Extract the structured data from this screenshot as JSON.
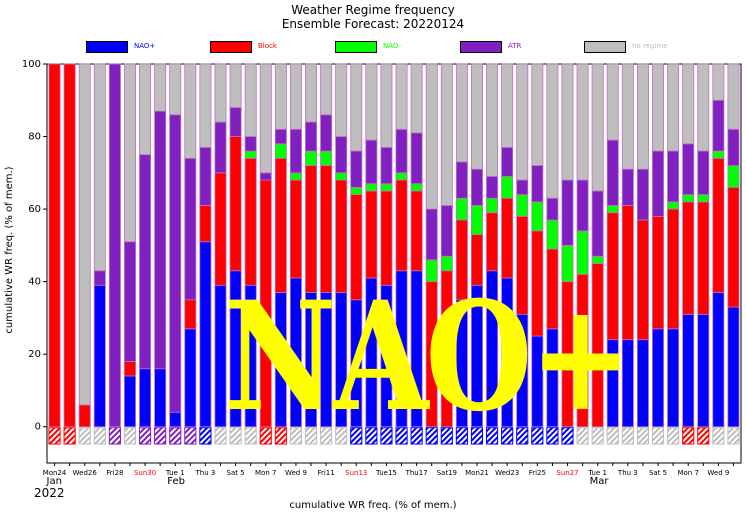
{
  "header": {
    "title": "Weather Regime frequency",
    "subtitle": "Ensemble Forecast: 20220124"
  },
  "legend": [
    {
      "label": "NAO+",
      "color": "#0000ff",
      "text_color": "#0000ff"
    },
    {
      "label": "Block",
      "color": "#ff0000",
      "text_color": "#ff0000"
    },
    {
      "label": "NAO-",
      "color": "#00ff00",
      "text_color": "#00ff00"
    },
    {
      "label": "ATR",
      "color": "#8020c0",
      "text_color": "#8020c0"
    },
    {
      "label": "no regime",
      "color": "#bebebe",
      "text_color": "#bebebe"
    }
  ],
  "overlay_text": "NAO+",
  "chart_data": {
    "type": "bar",
    "stacked": true,
    "ylabel": "cumulative WR freq. (% of mem.)",
    "xlabel": "cumulative WR freq. (% of mem.)",
    "ylim": [
      -10,
      100
    ],
    "yticks": [
      0,
      20,
      40,
      60,
      80,
      100
    ],
    "year_label": "2022",
    "month_labels": [
      {
        "label": "Jan",
        "at_index": 0
      },
      {
        "label": "Feb",
        "at_index": 8
      },
      {
        "label": "Mar",
        "at_index": 36
      }
    ],
    "tick_labels": [
      {
        "label": "Mon24",
        "at_index": 0,
        "color": "#000000"
      },
      {
        "label": "Wed26",
        "at_index": 2,
        "color": "#000000"
      },
      {
        "label": "Fri28",
        "at_index": 4,
        "color": "#000000"
      },
      {
        "label": "Sun30",
        "at_index": 6,
        "color": "#ff0000"
      },
      {
        "label": "Tue 1",
        "at_index": 8,
        "color": "#000000"
      },
      {
        "label": "Thu 3",
        "at_index": 10,
        "color": "#000000"
      },
      {
        "label": "Sat 5",
        "at_index": 12,
        "color": "#000000"
      },
      {
        "label": "Mon 7",
        "at_index": 14,
        "color": "#000000"
      },
      {
        "label": "Wed 9",
        "at_index": 16,
        "color": "#000000"
      },
      {
        "label": "Fri11",
        "at_index": 18,
        "color": "#000000"
      },
      {
        "label": "Sun13",
        "at_index": 20,
        "color": "#ff0000"
      },
      {
        "label": "Tue15",
        "at_index": 22,
        "color": "#000000"
      },
      {
        "label": "Thu17",
        "at_index": 24,
        "color": "#000000"
      },
      {
        "label": "Sat19",
        "at_index": 26,
        "color": "#000000"
      },
      {
        "label": "Mon21",
        "at_index": 28,
        "color": "#000000"
      },
      {
        "label": "Wed23",
        "at_index": 30,
        "color": "#000000"
      },
      {
        "label": "Fri25",
        "at_index": 32,
        "color": "#000000"
      },
      {
        "label": "Sun27",
        "at_index": 34,
        "color": "#ff0000"
      },
      {
        "label": "Tue 1",
        "at_index": 36,
        "color": "#000000"
      },
      {
        "label": "Thu 3",
        "at_index": 38,
        "color": "#000000"
      },
      {
        "label": "Sat 5",
        "at_index": 40,
        "color": "#000000"
      },
      {
        "label": "Mon 7",
        "at_index": 42,
        "color": "#000000"
      },
      {
        "label": "Wed 9",
        "at_index": 44,
        "color": "#000000"
      }
    ],
    "series_order": [
      "NAO+",
      "Block",
      "NAO-",
      "ATR",
      "no regime"
    ],
    "bars": [
      [
        0,
        100,
        0,
        0,
        0
      ],
      [
        0,
        100,
        0,
        0,
        0
      ],
      [
        0,
        6,
        0,
        0,
        94
      ],
      [
        39,
        0,
        0,
        4,
        57
      ],
      [
        0,
        0,
        0,
        100,
        0
      ],
      [
        14,
        4,
        0,
        33,
        49
      ],
      [
        16,
        0,
        0,
        59,
        25
      ],
      [
        16,
        0,
        0,
        71,
        13
      ],
      [
        4,
        0,
        0,
        82,
        14
      ],
      [
        27,
        8,
        0,
        39,
        26
      ],
      [
        51,
        10,
        0,
        16,
        23
      ],
      [
        39,
        31,
        0,
        14,
        16
      ],
      [
        43,
        37,
        0,
        8,
        12
      ],
      [
        39,
        35,
        2,
        4,
        20
      ],
      [
        0,
        68,
        0,
        2,
        30
      ],
      [
        37,
        37,
        4,
        4,
        18
      ],
      [
        41,
        27,
        2,
        12,
        18
      ],
      [
        37,
        35,
        4,
        8,
        16
      ],
      [
        37,
        35,
        4,
        10,
        14
      ],
      [
        37,
        31,
        2,
        10,
        20
      ],
      [
        35,
        29,
        2,
        10,
        24
      ],
      [
        41,
        24,
        2,
        12,
        21
      ],
      [
        39,
        26,
        2,
        10,
        23
      ],
      [
        43,
        25,
        2,
        12,
        18
      ],
      [
        43,
        22,
        2,
        14,
        19
      ],
      [
        0,
        40,
        6,
        14,
        40
      ],
      [
        0,
        43,
        4,
        14,
        39
      ],
      [
        35,
        22,
        6,
        10,
        27
      ],
      [
        39,
        14,
        8,
        10,
        29
      ],
      [
        43,
        16,
        4,
        6,
        31
      ],
      [
        41,
        22,
        6,
        8,
        23
      ],
      [
        31,
        27,
        6,
        4,
        32
      ],
      [
        25,
        29,
        8,
        10,
        28
      ],
      [
        27,
        22,
        8,
        6,
        37
      ],
      [
        0,
        40,
        10,
        18,
        32
      ],
      [
        0,
        42,
        12,
        14,
        32
      ],
      [
        0,
        45,
        2,
        18,
        35
      ],
      [
        24,
        35,
        2,
        18,
        21
      ],
      [
        24,
        37,
        0,
        10,
        29
      ],
      [
        24,
        33,
        0,
        14,
        29
      ],
      [
        27,
        31,
        0,
        18,
        24
      ],
      [
        27,
        33,
        2,
        14,
        24
      ],
      [
        31,
        31,
        2,
        14,
        22
      ],
      [
        31,
        31,
        2,
        12,
        24
      ],
      [
        37,
        37,
        2,
        14,
        10
      ],
      [
        33,
        33,
        6,
        10,
        18
      ]
    ],
    "indicator_regimes": [
      "Block",
      "Block",
      "no regime",
      "no regime",
      "ATR",
      "no regime",
      "ATR",
      "ATR",
      "ATR",
      "ATR",
      "NAO+",
      "no regime",
      "no regime",
      "no regime",
      "Block",
      "Block",
      "no regime",
      "no regime",
      "no regime",
      "no regime",
      "NAO+",
      "NAO+",
      "NAO+",
      "NAO+",
      "NAO+",
      "NAO+",
      "NAO+",
      "NAO+",
      "NAO+",
      "NAO+",
      "NAO+",
      "NAO+",
      "NAO+",
      "NAO+",
      "NAO+",
      "no regime",
      "no regime",
      "no regime",
      "no regime",
      "no regime",
      "no regime",
      "no regime",
      "Block",
      "Block",
      "no regime",
      "no regime"
    ]
  }
}
